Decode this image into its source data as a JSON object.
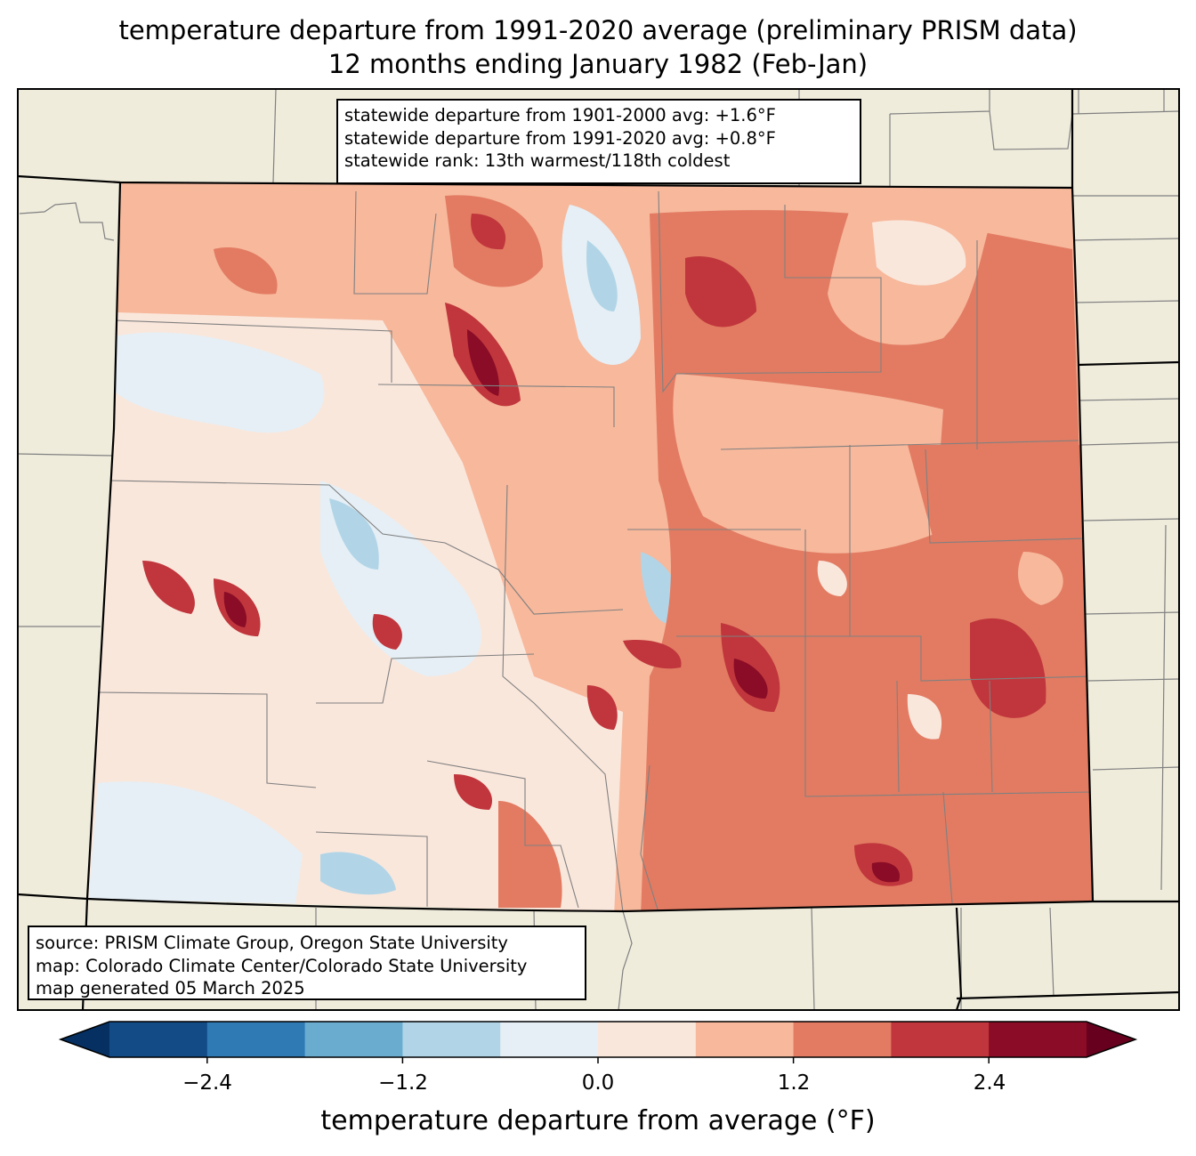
{
  "title": {
    "line1": "temperature departure from 1991-2020 average (preliminary PRISM data)",
    "line2": "12 months ending January 1982 (Feb-Jan)"
  },
  "stats_box": {
    "line1": "statewide departure from 1901-2000 avg: +1.6°F",
    "line2": "statewide departure from 1991-2020 avg: +0.8°F",
    "line3": "statewide rank: 13th warmest/118th coldest"
  },
  "credits_box": {
    "line1": "source: PRISM Climate Group, Oregon State University",
    "line2": "map: Colorado Climate Center/Colorado State University",
    "line3": "map generated 05 March 2025"
  },
  "colorbar": {
    "label": "temperature departure from average (°F)",
    "ticks": [
      "−2.4",
      "−1.2",
      "0.0",
      "1.2",
      "2.4"
    ],
    "bins": [
      -3.0,
      -2.4,
      -1.8,
      -1.2,
      -0.6,
      0.0,
      0.6,
      1.2,
      1.8,
      2.4,
      3.0
    ],
    "colors": [
      "#053061",
      "#134b87",
      "#2f79b5",
      "#6aacd0",
      "#b1d5e7",
      "#e5eff5",
      "#fae7dc",
      "#f7b89c",
      "#e27b62",
      "#c0363c",
      "#8a0c26",
      "#67001f"
    ]
  },
  "map_colors": {
    "land": "#efecdc",
    "state_border": "#000000",
    "county_border": "#808080"
  }
}
